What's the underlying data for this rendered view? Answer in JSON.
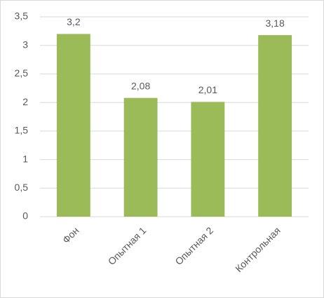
{
  "chart_data": {
    "type": "bar",
    "categories": [
      "Фон",
      "Опытная 1",
      "Опытная 2",
      "Контрольная"
    ],
    "values": [
      3.2,
      2.08,
      2.01,
      3.18
    ],
    "value_labels": [
      "3,2",
      "2,08",
      "2,01",
      "3,18"
    ],
    "color": "#9bbb59",
    "ylim": [
      0,
      3.5
    ],
    "yticks": [
      0,
      {
        "value": 0.5,
        "label": "0,5"
      },
      1,
      {
        "value": 1.5,
        "label": "1,5"
      },
      2,
      {
        "value": 2.5,
        "label": "2,5"
      },
      3,
      {
        "value": 3.5,
        "label": "3,5"
      }
    ],
    "grid": true
  }
}
